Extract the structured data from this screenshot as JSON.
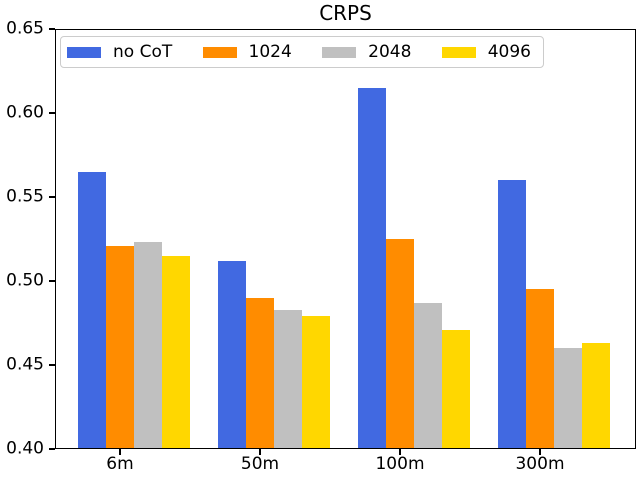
{
  "chart_data": {
    "type": "bar",
    "title": "CRPS",
    "categories": [
      "6m",
      "50m",
      "100m",
      "300m"
    ],
    "series": [
      {
        "name": "no CoT",
        "color": "#4169e1",
        "values": [
          0.565,
          0.512,
          0.615,
          0.56
        ]
      },
      {
        "name": "1024",
        "color": "#ff8c00",
        "values": [
          0.521,
          0.49,
          0.525,
          0.495
        ]
      },
      {
        "name": "2048",
        "color": "#c0c0c0",
        "values": [
          0.523,
          0.483,
          0.487,
          0.46
        ]
      },
      {
        "name": "4096",
        "color": "#ffd700",
        "values": [
          0.515,
          0.479,
          0.471,
          0.463
        ]
      }
    ],
    "ylim": [
      0.4,
      0.65
    ],
    "ytick_labels": [
      "0.40",
      "0.45",
      "0.50",
      "0.55",
      "0.60",
      "0.65"
    ],
    "grid": false,
    "legend_position": "upper-left-inside",
    "axis_color": "#000000",
    "background": "#ffffff"
  }
}
